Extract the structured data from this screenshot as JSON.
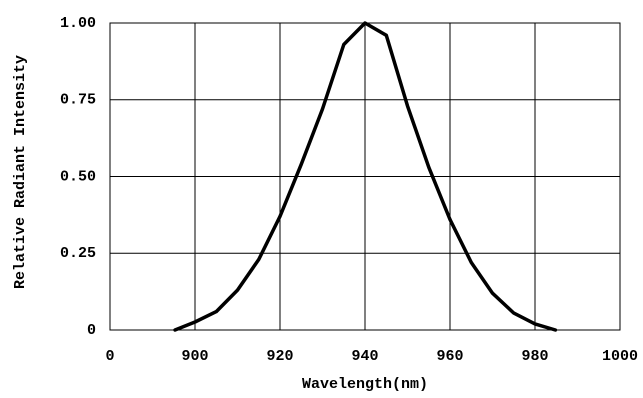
{
  "chart_data": {
    "type": "line",
    "xlabel": "Wavelength(nm)",
    "ylabel": "Relative Radiant Intensity",
    "x": [
      895.3,
      900,
      905,
      910,
      915,
      920,
      925,
      930,
      935,
      940,
      945,
      950,
      955,
      960,
      965,
      970,
      975,
      980,
      984.8
    ],
    "values": [
      0,
      0.026,
      0.06,
      0.13,
      0.23,
      0.37,
      0.54,
      0.72,
      0.93,
      1.0,
      0.96,
      0.73,
      0.53,
      0.36,
      0.22,
      0.12,
      0.055,
      0.02,
      0
    ],
    "color": "#000000",
    "xlim": [
      880,
      1000
    ],
    "xticks": [
      {
        "value": 880,
        "label": "0"
      },
      900,
      920,
      940,
      960,
      980,
      1000
    ],
    "ylim": [
      0,
      1
    ],
    "yticks": [
      0,
      0.25,
      {
        "value": 0.5,
        "label": "0.50"
      },
      0.75,
      {
        "value": 1,
        "label": "1.00"
      }
    ],
    "grid": true
  }
}
